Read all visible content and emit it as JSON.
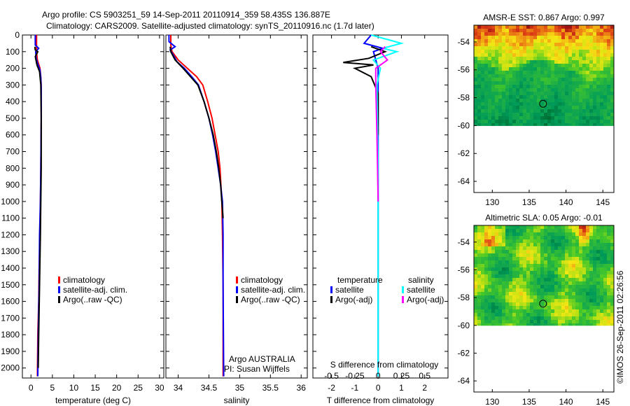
{
  "header": {
    "line1": "Argo profile: CS 5903251_59 14-Sep-2011 20110914_359 58.435S 136.887E",
    "line2": "Climatology: CARS2009. Satellite-adjusted climatology: synTS_20110916.nc (1.7d later)"
  },
  "watermark": "©IMOS 26-Sep-2011 02:26:56",
  "colors": {
    "climatology": "#ff0000",
    "satellite": "#0000ff",
    "argo": "#000000",
    "sal_sat": "#00ffff",
    "sal_argo": "#ff00ff"
  },
  "chart_data": [
    {
      "id": "temp",
      "type": "line",
      "xlabel": "temperature (deg C)",
      "xlim": [
        -2,
        31
      ],
      "ylim": [
        0,
        2060
      ],
      "xticks": [
        0,
        5,
        10,
        15,
        20,
        25,
        30
      ],
      "yticks": [
        0,
        100,
        200,
        300,
        400,
        500,
        600,
        700,
        800,
        900,
        1000,
        1100,
        1200,
        1300,
        1400,
        1500,
        1600,
        1700,
        1800,
        1900,
        2000
      ],
      "legend": [
        "climatology",
        "satellite-adj. clim.",
        "Argo(..raw -QC)"
      ],
      "series": [
        {
          "name": "climatology",
          "color": "#ff0000",
          "x": [
            1.3,
            1.3,
            1.3,
            1.5,
            2.1,
            2.3,
            2.4,
            2.4,
            2.3,
            2.2,
            2.1,
            1.9,
            1.8,
            1.6,
            1.5
          ],
          "y": [
            0,
            60,
            100,
            150,
            200,
            250,
            300,
            500,
            800,
            1000,
            1200,
            1400,
            1600,
            1800,
            2050
          ]
        },
        {
          "name": "satellite-adj. clim.",
          "color": "#0000ff",
          "x": [
            1.0,
            1.0,
            1.8,
            1.1,
            1.2,
            1.6,
            2.1,
            2.3,
            2.4,
            2.4,
            2.3,
            2.2,
            2.0,
            1.9,
            1.7,
            1.6
          ],
          "y": [
            0,
            60,
            80,
            100,
            140,
            175,
            210,
            260,
            320,
            500,
            800,
            1000,
            1200,
            1500,
            1800,
            2050
          ]
        },
        {
          "name": "Argo(..raw -QC)",
          "color": "#000000",
          "x": [
            0.9,
            1.0,
            1.6,
            1.0,
            1.4,
            2.0,
            2.3,
            2.4,
            2.4,
            2.3,
            2.2,
            2.0,
            1.8,
            1.7
          ],
          "y": [
            70,
            90,
            100,
            130,
            180,
            220,
            300,
            500,
            800,
            1000,
            1200,
            1500,
            1800,
            2000
          ]
        }
      ]
    },
    {
      "id": "sal",
      "type": "line",
      "xlabel": "salinity",
      "xlim": [
        33.8,
        36.1
      ],
      "ylim": [
        0,
        2060
      ],
      "xticks": [
        34,
        34.5,
        35,
        35.5,
        36
      ],
      "yticks": [
        0,
        100,
        200,
        300,
        400,
        500,
        600,
        700,
        800,
        900,
        1000,
        1100,
        1200,
        1300,
        1400,
        1500,
        1600,
        1700,
        1800,
        1900,
        2000
      ],
      "legend": [
        "climatology",
        "satellite-adj. clim."
      ],
      "legend2": [
        "Argo(..raw -QC)"
      ],
      "annot": [
        "Argo AUSTRALIA",
        "PI: Susan Wijffels"
      ],
      "series": [
        {
          "name": "climatology",
          "color": "#ff0000",
          "x": [
            33.88,
            33.88,
            33.9,
            34.0,
            34.15,
            34.3,
            34.4,
            34.48,
            34.55,
            34.6,
            34.65,
            34.68,
            34.71,
            34.72,
            34.73,
            34.73,
            34.73
          ],
          "y": [
            0,
            60,
            100,
            150,
            200,
            250,
            300,
            400,
            500,
            600,
            700,
            800,
            1000,
            1200,
            1500,
            1800,
            2050
          ]
        },
        {
          "name": "satellite-adj. clim.",
          "color": "#0000ff",
          "x": [
            33.85,
            33.85,
            33.95,
            33.87,
            33.92,
            33.98,
            34.1,
            34.22,
            34.33,
            34.42,
            34.5,
            34.56,
            34.61,
            34.65,
            34.69,
            34.72,
            34.73,
            34.73,
            34.74
          ],
          "y": [
            0,
            40,
            70,
            90,
            120,
            160,
            200,
            250,
            300,
            400,
            500,
            600,
            700,
            800,
            900,
            1000,
            1200,
            1500,
            2050
          ]
        },
        {
          "name": "Argo(..raw -QC)",
          "color": "#000000",
          "x": [
            33.87,
            33.88,
            33.95,
            34.08,
            34.2,
            34.32,
            34.42,
            34.5,
            34.57,
            34.62,
            34.66,
            34.69,
            34.71,
            34.73
          ],
          "y": [
            70,
            100,
            150,
            200,
            250,
            300,
            400,
            500,
            600,
            700,
            800,
            900,
            1000,
            1100
          ]
        }
      ]
    },
    {
      "id": "diff",
      "type": "line",
      "xlabel": "T difference from climatology",
      "toplabel": "S difference from climatology",
      "xlim": [
        -2.8,
        3.0
      ],
      "ylim": [
        0,
        2060
      ],
      "xticks": [
        -2,
        -1,
        0,
        1,
        2
      ],
      "top_ticks": [
        {
          "label": "-0.5",
          "t": -2.0
        },
        {
          "label": "-0.25",
          "t": -1.0
        },
        {
          "label": "0",
          "t": 0.0
        },
        {
          "label": "0.25",
          "t": 1.0
        },
        {
          "label": "0.5",
          "t": 2.0
        }
      ],
      "yticks": [
        0,
        100,
        200,
        300,
        400,
        500,
        600,
        700,
        800,
        900,
        1000,
        1100,
        1200,
        1300,
        1400,
        1500,
        1600,
        1700,
        1800,
        1900,
        2000
      ],
      "legend_titles": [
        "temperature",
        "salinity"
      ],
      "legend_left": [
        "satellite",
        "Argo(-adj)"
      ],
      "legend_right": [
        "satellite",
        "Argo(-adj)"
      ],
      "series": [
        {
          "name": "T satellite",
          "color": "#0000ff",
          "x": [
            -0.3,
            -0.6,
            0.2,
            -0.2,
            -0.1,
            0.0,
            0.0,
            0.0,
            0.0,
            0.0
          ],
          "y": [
            0,
            50,
            80,
            100,
            150,
            200,
            300,
            800,
            1500,
            2050
          ]
        },
        {
          "name": "T Argo(-adj)",
          "color": "#000000",
          "x": [
            -0.3,
            0.3,
            -0.4,
            -1.5,
            -0.2,
            -1.0,
            -0.3,
            0.0,
            0.0
          ],
          "y": [
            70,
            100,
            140,
            165,
            180,
            200,
            250,
            350,
            600
          ]
        },
        {
          "name": "S satellite",
          "color": "#00ffff",
          "x": [
            -0.3,
            1.0,
            0.2,
            0.8,
            -0.2,
            0.1,
            -0.05,
            0.0,
            0.0,
            0.0
          ],
          "y": [
            0,
            50,
            80,
            100,
            150,
            200,
            300,
            800,
            1500,
            2050
          ]
        },
        {
          "name": "S Argo(-adj)",
          "color": "#ff00ff",
          "x": [
            0.3,
            0.1,
            0.4,
            -0.1,
            -0.1,
            -0.05,
            0.0
          ],
          "y": [
            70,
            100,
            150,
            200,
            300,
            600,
            1000
          ]
        }
      ]
    },
    {
      "id": "sst",
      "type": "heatmap",
      "title": "AMSR-E SST: 0.867 Argo: 0.997",
      "xlim": [
        127.5,
        146.5
      ],
      "ylim": [
        -64.8,
        -52.8
      ],
      "xticks": [
        130,
        135,
        140,
        145
      ],
      "yticks": [
        -54,
        -56,
        -58,
        -60,
        -62,
        -64
      ],
      "data_ylim": [
        -60,
        -52.8
      ],
      "marker": {
        "lon": 136.887,
        "lat": -58.435
      }
    },
    {
      "id": "sla",
      "type": "heatmap",
      "title": "Altimetric SLA: 0.05 Argo: -0.01",
      "xlim": [
        127.5,
        146.5
      ],
      "ylim": [
        -64.8,
        -52.8
      ],
      "xticks": [
        130,
        135,
        140,
        145
      ],
      "yticks": [
        -54,
        -56,
        -58,
        -60,
        -62,
        -64
      ],
      "data_ylim": [
        -60,
        -52.8
      ],
      "marker": {
        "lon": 136.887,
        "lat": -58.435
      }
    }
  ]
}
